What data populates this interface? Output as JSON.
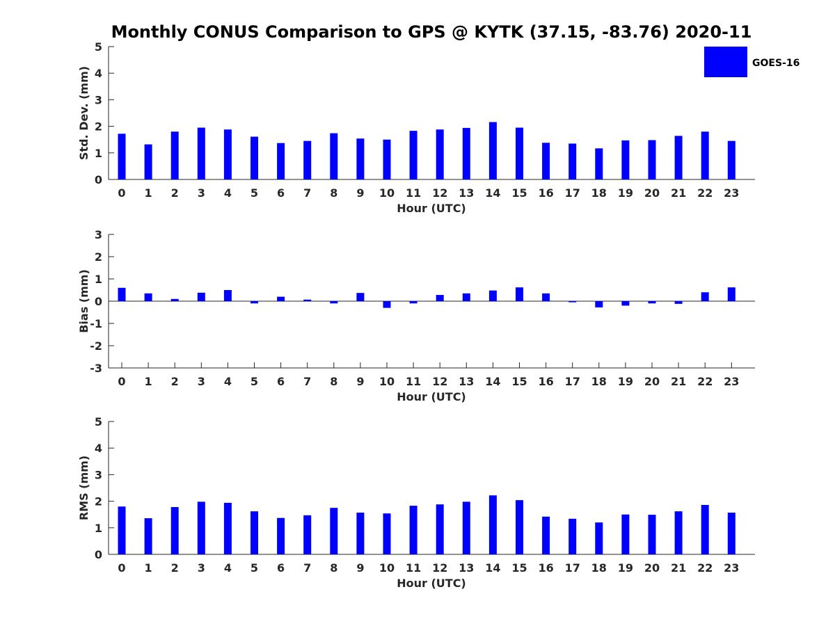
{
  "title": "Monthly CONUS Comparison to GPS @ KYTK (37.15, -83.76) 2020-11",
  "legend": {
    "label": "GOES-16",
    "color": "#0000ff"
  },
  "chart_data": [
    {
      "type": "bar",
      "title": "Monthly CONUS Comparison to GPS @ KYTK (37.15, -83.76) 2020-11",
      "xlabel": "Hour (UTC)",
      "ylabel": "Std. Dev. (mm)",
      "ylim": [
        0,
        5
      ],
      "yticks": [
        0,
        1,
        2,
        3,
        4,
        5
      ],
      "categories": [
        "0",
        "1",
        "2",
        "3",
        "4",
        "5",
        "6",
        "7",
        "8",
        "9",
        "10",
        "11",
        "12",
        "13",
        "14",
        "15",
        "16",
        "17",
        "18",
        "19",
        "20",
        "21",
        "22",
        "23"
      ],
      "series": [
        {
          "name": "GOES-16",
          "color": "#0000ff",
          "values": [
            1.72,
            1.32,
            1.8,
            1.95,
            1.88,
            1.61,
            1.37,
            1.45,
            1.74,
            1.54,
            1.5,
            1.83,
            1.88,
            1.94,
            2.16,
            1.95,
            1.38,
            1.35,
            1.17,
            1.47,
            1.48,
            1.64,
            1.8,
            1.45
          ]
        }
      ],
      "grid": false
    },
    {
      "type": "bar",
      "xlabel": "Hour (UTC)",
      "ylabel": "Bias (mm)",
      "ylim": [
        -3,
        3
      ],
      "yticks": [
        -3,
        -2,
        -1,
        0,
        1,
        2,
        3
      ],
      "zero_line": true,
      "categories": [
        "0",
        "1",
        "2",
        "3",
        "4",
        "5",
        "6",
        "7",
        "8",
        "9",
        "10",
        "11",
        "12",
        "13",
        "14",
        "15",
        "16",
        "17",
        "18",
        "19",
        "20",
        "21",
        "22",
        "23"
      ],
      "series": [
        {
          "name": "GOES-16",
          "color": "#0000ff",
          "values": [
            0.6,
            0.35,
            0.1,
            0.38,
            0.5,
            -0.1,
            0.2,
            0.07,
            -0.1,
            0.37,
            -0.3,
            -0.1,
            0.28,
            0.35,
            0.48,
            0.62,
            0.35,
            -0.05,
            -0.28,
            -0.2,
            -0.1,
            -0.12,
            0.4,
            0.62
          ]
        }
      ],
      "grid": false
    },
    {
      "type": "bar",
      "xlabel": "Hour (UTC)",
      "ylabel": "RMS (mm)",
      "ylim": [
        0,
        5
      ],
      "yticks": [
        0,
        1,
        2,
        3,
        4,
        5
      ],
      "categories": [
        "0",
        "1",
        "2",
        "3",
        "4",
        "5",
        "6",
        "7",
        "8",
        "9",
        "10",
        "11",
        "12",
        "13",
        "14",
        "15",
        "16",
        "17",
        "18",
        "19",
        "20",
        "21",
        "22",
        "23"
      ],
      "series": [
        {
          "name": "GOES-16",
          "color": "#0000ff",
          "values": [
            1.8,
            1.36,
            1.78,
            1.98,
            1.94,
            1.62,
            1.37,
            1.47,
            1.75,
            1.57,
            1.54,
            1.83,
            1.88,
            1.98,
            2.22,
            2.04,
            1.42,
            1.34,
            1.2,
            1.5,
            1.49,
            1.62,
            1.86,
            1.57
          ]
        }
      ],
      "grid": false
    }
  ]
}
